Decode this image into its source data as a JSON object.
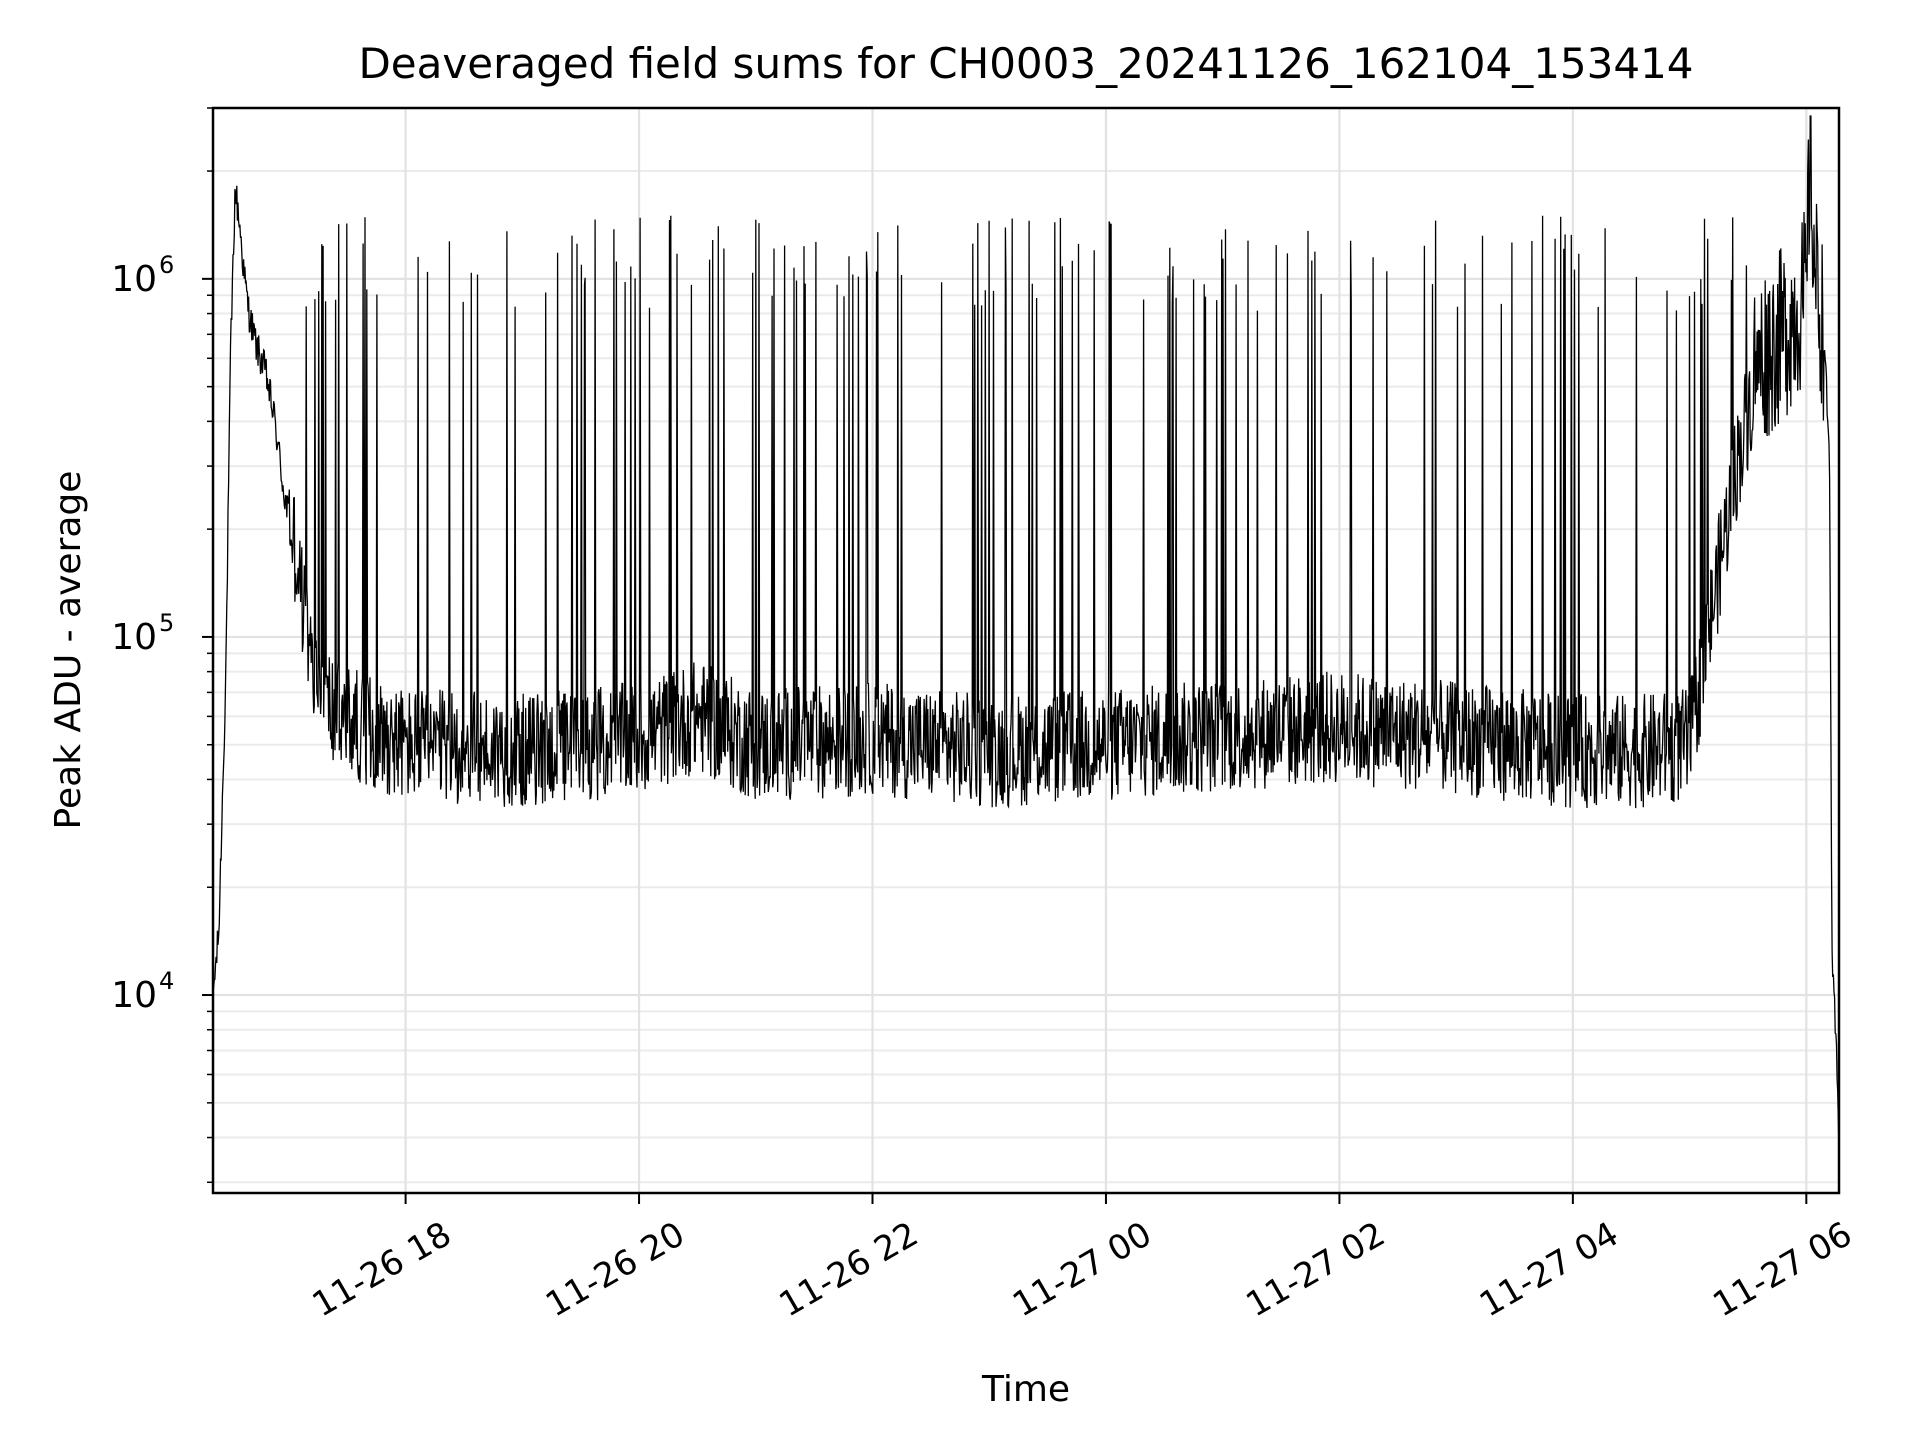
{
  "chart_data": {
    "type": "line",
    "title": "Deaveraged field sums for CH0003_20241126_162104_153414",
    "xlabel": "Time",
    "ylabel": "Peak ADU - average",
    "yscale": "log",
    "grid": true,
    "line_color": "#000000",
    "x_ticks": [
      {
        "label": "11-26 18",
        "hours": 18
      },
      {
        "label": "11-26 20",
        "hours": 20
      },
      {
        "label": "11-26 22",
        "hours": 22
      },
      {
        "label": "11-27 00",
        "hours": 24
      },
      {
        "label": "11-27 02",
        "hours": 26
      },
      {
        "label": "11-27 04",
        "hours": 28
      },
      {
        "label": "11-27 06",
        "hours": 30
      }
    ],
    "y_ticks": [
      {
        "base": "10",
        "exp": "4",
        "value": 10000
      },
      {
        "base": "10",
        "exp": "5",
        "value": 100000
      },
      {
        "base": "10",
        "exp": "6",
        "value": 1000000
      }
    ],
    "xlim_hours": [
      16.35,
      30.28
    ],
    "ylim": [
      2800,
      3000000
    ],
    "series": [
      {
        "values_hours": [
          16.35,
          16.4,
          16.46,
          16.5,
          16.54,
          16.58,
          16.62,
          16.66,
          16.72,
          16.8,
          16.88,
          16.96,
          17.05,
          17.2,
          17.4,
          17.7,
          18.0,
          19.0,
          20.0,
          20.5,
          21.0,
          22.0,
          23.0,
          24.0,
          25.0,
          26.0,
          27.0,
          28.0,
          28.6,
          29.0,
          29.4,
          29.6,
          29.8,
          30.0,
          30.03,
          30.08,
          30.15,
          30.2,
          30.22,
          30.25,
          30.28
        ],
        "values": [
          10000,
          15000,
          80000,
          600000,
          1800000,
          1400000,
          1000000,
          800000,
          650000,
          550000,
          400000,
          250000,
          180000,
          80000,
          60000,
          55000,
          50000,
          48000,
          52000,
          60000,
          50000,
          52000,
          48000,
          50000,
          53000,
          56000,
          52000,
          48000,
          48000,
          50000,
          300000,
          600000,
          700000,
          900000,
          2200000,
          1000000,
          700000,
          300000,
          12000,
          8000,
          4000
        ]
      }
    ]
  }
}
